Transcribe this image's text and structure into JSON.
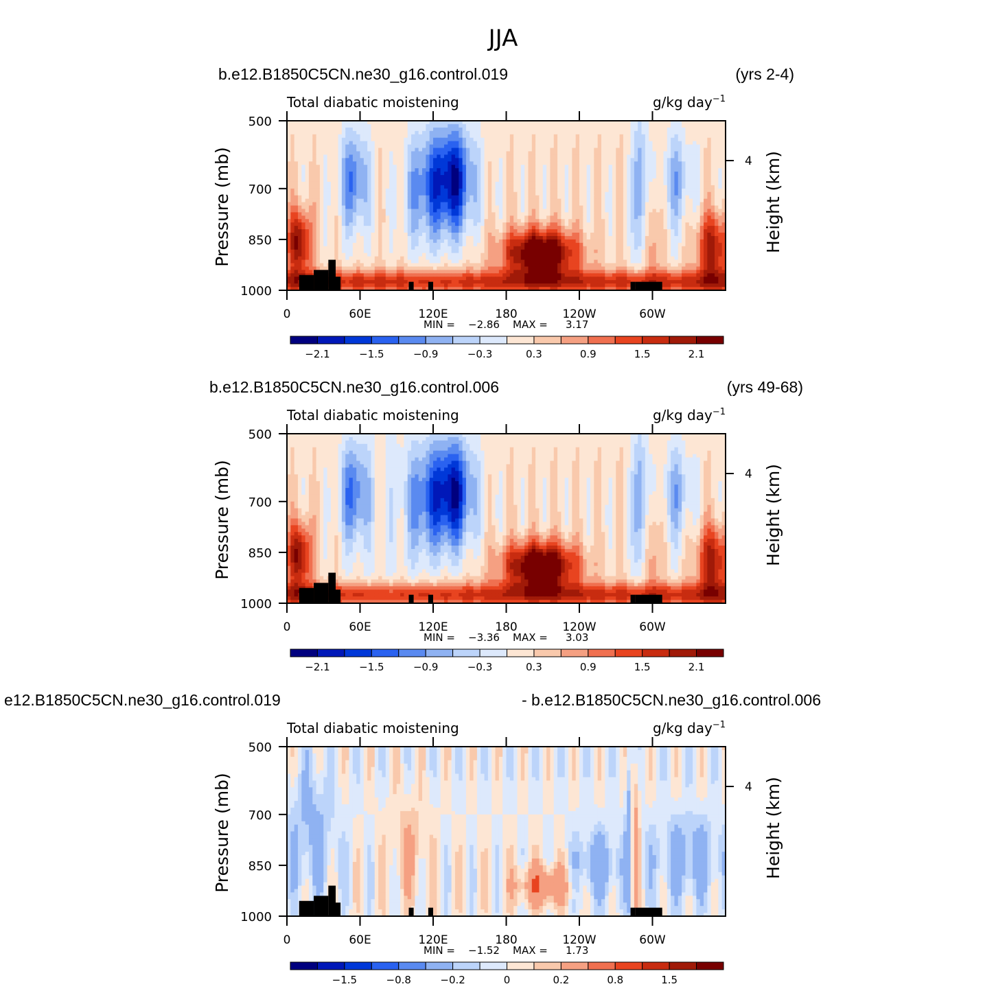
{
  "figure_title": "JJA",
  "colors": {
    "palette": [
      "#00007f",
      "#0018b8",
      "#0038d8",
      "#2a62f0",
      "#5a8af0",
      "#8fb2f2",
      "#bcd4fa",
      "#dde9fc",
      "#fde6d4",
      "#f9c9ac",
      "#f5a082",
      "#f07050",
      "#e84420",
      "#c82c10",
      "#a01a08",
      "#780000"
    ],
    "land": "#000000"
  },
  "chart_data": [
    {
      "type": "heatmap",
      "left_title": "b.e12.B1850C5CN.ne30_g16.control.019",
      "right_title": "(yrs 2-4)",
      "variable_label": "Total diabatic moistening",
      "units_base": "g/kg day",
      "units_exp": "−1",
      "ylabel": "Pressure (mb)",
      "ylabel_right": "Height (km)",
      "yticks": [
        "500",
        "700",
        "850",
        "1000"
      ],
      "ytick_values": [
        500,
        700,
        850,
        1000
      ],
      "right_tick": "4",
      "xticks": [
        "0",
        "60E",
        "120E",
        "180",
        "120W",
        "60W"
      ],
      "xtick_values": [
        0,
        60,
        120,
        180,
        240,
        300
      ],
      "xlim": [
        0,
        360
      ],
      "ylim": [
        1000,
        500
      ],
      "min_label": "MIN =",
      "min_value": "−2.86",
      "max_label": "MAX =",
      "max_value": "3.17",
      "colorbar_labels": [
        "−2.1",
        "−1.5",
        "−0.9",
        "−0.3",
        "0.3",
        "0.9",
        "1.5",
        "2.1"
      ],
      "colorbar_levels": [
        -2.4,
        -2.1,
        -1.8,
        -1.5,
        -1.2,
        -0.9,
        -0.6,
        -0.3,
        0,
        0.3,
        0.6,
        0.9,
        1.2,
        1.5,
        1.8,
        2.1,
        2.4
      ],
      "scale": 3.0
    },
    {
      "type": "heatmap",
      "left_title": "b.e12.B1850C5CN.ne30_g16.control.006",
      "right_title": "(yrs 49-68)",
      "variable_label": "Total diabatic moistening",
      "units_base": "g/kg day",
      "units_exp": "−1",
      "ylabel": "Pressure (mb)",
      "ylabel_right": "Height (km)",
      "yticks": [
        "500",
        "700",
        "850",
        "1000"
      ],
      "ytick_values": [
        500,
        700,
        850,
        1000
      ],
      "right_tick": "4",
      "xticks": [
        "0",
        "60E",
        "120E",
        "180",
        "120W",
        "60W"
      ],
      "xtick_values": [
        0,
        60,
        120,
        180,
        240,
        300
      ],
      "xlim": [
        0,
        360
      ],
      "ylim": [
        1000,
        500
      ],
      "min_label": "MIN =",
      "min_value": "−3.36",
      "max_label": "MAX =",
      "max_value": "3.03",
      "colorbar_labels": [
        "−2.1",
        "−1.5",
        "−0.9",
        "−0.3",
        "0.3",
        "0.9",
        "1.5",
        "2.1"
      ],
      "colorbar_levels": [
        -2.4,
        -2.1,
        -1.8,
        -1.5,
        -1.2,
        -0.9,
        -0.6,
        -0.3,
        0,
        0.3,
        0.6,
        0.9,
        1.2,
        1.5,
        1.8,
        2.1,
        2.4
      ],
      "scale": 3.0
    },
    {
      "type": "heatmap",
      "left_title": "e12.B1850C5CN.ne30_g16.control.019",
      "right_title": "- b.e12.B1850C5CN.ne30_g16.control.006",
      "variable_label": "Total diabatic moistening",
      "units_base": "g/kg day",
      "units_exp": "−1",
      "ylabel": "Pressure (mb)",
      "ylabel_right": "Height (km)",
      "yticks": [
        "500",
        "700",
        "850",
        "1000"
      ],
      "ytick_values": [
        500,
        700,
        850,
        1000
      ],
      "right_tick": "4",
      "xticks": [
        "0",
        "60E",
        "120E",
        "180",
        "120W",
        "60W"
      ],
      "xtick_values": [
        0,
        60,
        120,
        180,
        240,
        300
      ],
      "xlim": [
        0,
        360
      ],
      "ylim": [
        1000,
        500
      ],
      "min_label": "MIN =",
      "min_value": "−1.52",
      "max_label": "MAX =",
      "max_value": "1.73",
      "colorbar_labels": [
        "−1.5",
        "−0.8",
        "−0.2",
        "0",
        "0.2",
        "0.8",
        "1.5"
      ],
      "colorbar_levels": [
        -2,
        -1.5,
        -1.2,
        -0.8,
        -0.5,
        -0.2,
        -0.1,
        0,
        0.1,
        0.2,
        0.5,
        0.8,
        1.2,
        1.5,
        2
      ],
      "scale": 1.5
    }
  ]
}
